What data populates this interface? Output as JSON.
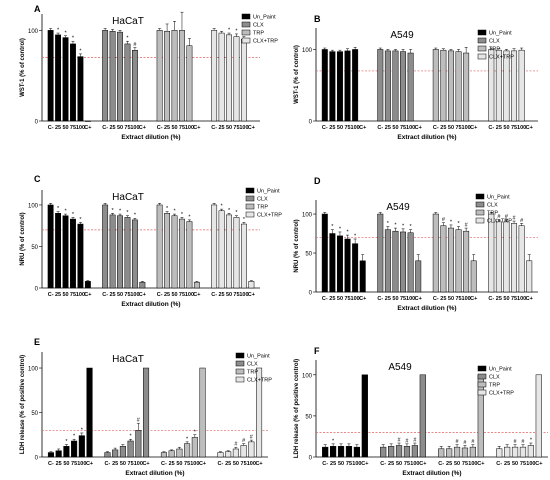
{
  "figure": {
    "x_tick_labels": [
      "C-",
      "25",
      "50",
      "75",
      "100",
      "C+"
    ],
    "threshold_color": "#e06060",
    "series_colors": {
      "Un_Paint": "#000000",
      "CLX": "#8c8c8c",
      "TRP": "#bdbdbd",
      "CLX+TRP": "#e6e6e6"
    }
  },
  "chart_data": [
    {
      "panel": "A",
      "title": "HaCaT",
      "type": "bar",
      "ylabel": "WST-1 (% of control)",
      "xlabel": "Extract dilution (%)",
      "yticks": [
        0,
        100
      ],
      "ylim": [
        0,
        118
      ],
      "threshold": 70,
      "categories": [
        "C-",
        "25",
        "50",
        "75",
        "100",
        "C+"
      ],
      "series": [
        {
          "name": "Un_Paint",
          "values": [
            100,
            95,
            92,
            85,
            71,
            0
          ],
          "errors": [
            2,
            2,
            2,
            3,
            3,
            0
          ],
          "marks": [
            "",
            "*",
            "*",
            "*",
            "*",
            ""
          ]
        },
        {
          "name": "CLX",
          "values": [
            100,
            99,
            98,
            85,
            78,
            null
          ],
          "errors": [
            2,
            2,
            2,
            3,
            3,
            0
          ],
          "marks": [
            "",
            "",
            "",
            "*",
            "#",
            ""
          ]
        },
        {
          "name": "TRP",
          "values": [
            100,
            99,
            100,
            100,
            83,
            null
          ],
          "errors": [
            2,
            8,
            10,
            20,
            8,
            0
          ],
          "marks": [
            "",
            "",
            "",
            "",
            "",
            ""
          ]
        },
        {
          "name": "CLX+TRP",
          "values": [
            100,
            97,
            95,
            93,
            90,
            null
          ],
          "errors": [
            2,
            2,
            2,
            3,
            3,
            0
          ],
          "marks": [
            "",
            "",
            "*",
            "*",
            "*",
            ""
          ]
        }
      ]
    },
    {
      "panel": "B",
      "title": "A549",
      "type": "bar",
      "ylabel": "WST-1 (% of control)",
      "xlabel": "Extract dilution (%)",
      "yticks": [
        0,
        100
      ],
      "ylim": [
        0,
        130
      ],
      "threshold": 70,
      "categories": [
        "C-",
        "25",
        "50",
        "75",
        "100",
        "C+"
      ],
      "series": [
        {
          "name": "Un_Paint",
          "values": [
            100,
            97,
            97,
            98,
            100,
            null
          ],
          "errors": [
            2,
            2,
            2,
            3,
            3,
            0
          ],
          "marks": [
            "",
            "",
            "",
            "",
            "",
            ""
          ]
        },
        {
          "name": "CLX",
          "values": [
            100,
            98,
            98,
            97,
            95,
            null
          ],
          "errors": [
            2,
            2,
            2,
            3,
            5,
            0
          ],
          "marks": [
            "",
            "",
            "",
            "",
            "",
            ""
          ]
        },
        {
          "name": "TRP",
          "values": [
            100,
            99,
            98,
            97,
            95,
            null
          ],
          "errors": [
            2,
            2,
            2,
            3,
            8,
            0
          ],
          "marks": [
            "",
            "",
            "",
            "",
            "",
            ""
          ]
        },
        {
          "name": "CLX+TRP",
          "values": [
            100,
            99,
            98,
            98,
            99,
            null
          ],
          "errors": [
            2,
            2,
            2,
            3,
            3,
            0
          ],
          "marks": [
            "",
            "",
            "",
            "",
            "",
            ""
          ]
        }
      ]
    },
    {
      "panel": "C",
      "title": "HaCaT",
      "type": "bar",
      "ylabel": "NRU (% of control)",
      "xlabel": "Extract dilution (%)",
      "yticks": [
        0,
        50,
        100
      ],
      "ylim": [
        0,
        118
      ],
      "threshold": 70,
      "categories": [
        "C-",
        "25",
        "50",
        "75",
        "100",
        "C+"
      ],
      "series": [
        {
          "name": "Un_Paint",
          "values": [
            100,
            90,
            87,
            83,
            77,
            8
          ],
          "errors": [
            2,
            2,
            2,
            2,
            2,
            1
          ],
          "marks": [
            "",
            "*",
            "*",
            "*",
            "*",
            ""
          ]
        },
        {
          "name": "CLX",
          "values": [
            100,
            88,
            87,
            85,
            82,
            7
          ],
          "errors": [
            2,
            2,
            2,
            2,
            2,
            1
          ],
          "marks": [
            "",
            "*",
            "*",
            "*",
            "*",
            ""
          ]
        },
        {
          "name": "TRP",
          "values": [
            100,
            90,
            87,
            83,
            80,
            7
          ],
          "errors": [
            2,
            2,
            2,
            2,
            2,
            1
          ],
          "marks": [
            "",
            "*",
            "*",
            "*",
            "*",
            ""
          ]
        },
        {
          "name": "CLX+TRP",
          "values": [
            100,
            93,
            88,
            85,
            77,
            8
          ],
          "errors": [
            2,
            2,
            2,
            2,
            2,
            1
          ],
          "marks": [
            "",
            "*",
            "*",
            "*",
            "*",
            ""
          ]
        }
      ]
    },
    {
      "panel": "D",
      "title": "A549",
      "type": "bar",
      "ylabel": "NRU (% of control)",
      "xlabel": "Extract dilution (%)",
      "yticks": [
        0,
        50,
        100
      ],
      "ylim": [
        0,
        118
      ],
      "threshold": 70,
      "categories": [
        "C-",
        "25",
        "50",
        "75",
        "100",
        "C+"
      ],
      "series": [
        {
          "name": "Un_Paint",
          "values": [
            100,
            75,
            72,
            68,
            62,
            40
          ],
          "errors": [
            2,
            5,
            5,
            5,
            6,
            8
          ],
          "marks": [
            "",
            "*",
            "*",
            "*",
            "*",
            ""
          ]
        },
        {
          "name": "CLX",
          "values": [
            100,
            80,
            78,
            77,
            76,
            40
          ],
          "errors": [
            2,
            4,
            4,
            4,
            4,
            8
          ],
          "marks": [
            "",
            "*",
            "*",
            "*",
            "*",
            ""
          ]
        },
        {
          "name": "TRP",
          "values": [
            100,
            85,
            82,
            80,
            78,
            40
          ],
          "errors": [
            2,
            4,
            4,
            4,
            4,
            8
          ],
          "marks": [
            "",
            "#",
            "*",
            "*",
            "#",
            ""
          ]
        },
        {
          "name": "CLX+TRP",
          "values": [
            100,
            90,
            90,
            88,
            85,
            40
          ],
          "errors": [
            2,
            3,
            3,
            3,
            3,
            8
          ],
          "marks": [
            "",
            "#",
            "#",
            "#",
            "#",
            ""
          ]
        }
      ]
    },
    {
      "panel": "E",
      "title": "HaCaT",
      "type": "bar",
      "ylabel": "LDH release (% of positive control)",
      "xlabel": "Extract dilution (%)",
      "yticks": [
        0,
        50,
        100
      ],
      "ylim": [
        0,
        118
      ],
      "threshold": 30,
      "categories": [
        "C-",
        "25",
        "50",
        "75",
        "100",
        "C+"
      ],
      "series": [
        {
          "name": "Un_Paint",
          "values": [
            5,
            7,
            12,
            18,
            24,
            100
          ],
          "errors": [
            1,
            2,
            2,
            2,
            3,
            0
          ],
          "marks": [
            "",
            "",
            "*",
            "*",
            "*",
            ""
          ]
        },
        {
          "name": "CLX",
          "values": [
            5,
            8,
            12,
            18,
            30,
            100
          ],
          "errors": [
            1,
            2,
            2,
            2,
            8,
            0
          ],
          "marks": [
            "",
            "",
            "",
            "*",
            "#",
            ""
          ]
        },
        {
          "name": "TRP",
          "values": [
            5,
            7,
            9,
            15,
            22,
            100
          ],
          "errors": [
            1,
            1,
            2,
            2,
            3,
            0
          ],
          "marks": [
            "",
            "",
            "",
            "*",
            "*",
            ""
          ]
        },
        {
          "name": "CLX+TRP",
          "values": [
            5,
            6,
            9,
            13,
            17,
            100
          ],
          "errors": [
            1,
            1,
            2,
            2,
            2,
            0
          ],
          "marks": [
            "",
            "",
            "#",
            "#",
            "#",
            ""
          ]
        }
      ]
    },
    {
      "panel": "F",
      "title": "A549",
      "type": "bar",
      "ylabel": "LDH release (% of positive control)",
      "xlabel": "Extract dilution (%)",
      "yticks": [
        0,
        50,
        100
      ],
      "ylim": [
        0,
        118
      ],
      "threshold": 30,
      "categories": [
        "C-",
        "25",
        "50",
        "75",
        "100",
        "C+"
      ],
      "series": [
        {
          "name": "Un_Paint",
          "values": [
            12,
            13,
            13,
            13,
            12,
            100
          ],
          "errors": [
            3,
            3,
            3,
            3,
            3,
            0
          ],
          "marks": [
            "",
            "*",
            "",
            "",
            "",
            ""
          ]
        },
        {
          "name": "CLX",
          "values": [
            12,
            13,
            14,
            13,
            14,
            100
          ],
          "errors": [
            3,
            3,
            3,
            3,
            3,
            0
          ],
          "marks": [
            "",
            "",
            "#",
            "#",
            "#",
            ""
          ]
        },
        {
          "name": "TRP",
          "values": [
            10,
            10,
            12,
            11,
            12,
            100
          ],
          "errors": [
            3,
            3,
            3,
            3,
            3,
            0
          ],
          "marks": [
            "",
            "",
            "#",
            "#",
            "#",
            ""
          ]
        },
        {
          "name": "CLX+TRP",
          "values": [
            10,
            12,
            12,
            12,
            14,
            100
          ],
          "errors": [
            3,
            3,
            3,
            3,
            3,
            0
          ],
          "marks": [
            "",
            "",
            "#",
            "#",
            "*",
            ""
          ]
        }
      ]
    }
  ]
}
